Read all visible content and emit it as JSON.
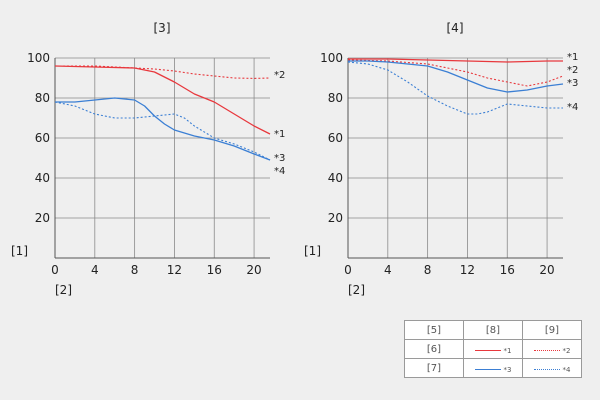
{
  "chart_data": [
    {
      "type": "line",
      "title": "[3]",
      "ylabel": "[1]",
      "xlabel": "[2]",
      "xlim": [
        0,
        21.6
      ],
      "ylim": [
        0,
        100
      ],
      "xticks": [
        0,
        4,
        8,
        12,
        16,
        20
      ],
      "yticks": [
        20,
        40,
        60,
        80,
        100
      ],
      "grid": true,
      "series": [
        {
          "name": "*1",
          "color": "#e8383d",
          "dash": "solid",
          "x": [
            0,
            4,
            8,
            10,
            12,
            14,
            16,
            18,
            20,
            21.6
          ],
          "y": [
            96,
            95.5,
            95,
            93,
            88,
            82,
            78,
            72,
            66,
            62
          ]
        },
        {
          "name": "*2",
          "color": "#e8383d",
          "dash": "dotted",
          "x": [
            0,
            4,
            8,
            10,
            12,
            14,
            16,
            18,
            20,
            21.6
          ],
          "y": [
            96,
            96,
            95,
            94.5,
            93.5,
            92,
            91,
            90,
            89.8,
            90
          ]
        },
        {
          "name": "*3",
          "color": "#3b7fd4",
          "dash": "solid",
          "x": [
            0,
            2,
            4,
            6,
            8,
            9,
            10,
            11,
            12,
            14,
            16,
            18,
            20,
            21.6
          ],
          "y": [
            78,
            78,
            79,
            80,
            79,
            76,
            71,
            67,
            64,
            61,
            59,
            56,
            52,
            49
          ]
        },
        {
          "name": "*4",
          "color": "#3b7fd4",
          "dash": "dotted",
          "x": [
            0,
            2,
            4,
            6,
            8,
            10,
            12,
            13,
            14,
            16,
            18,
            20,
            21.6
          ],
          "y": [
            78,
            76,
            72,
            70,
            70,
            71,
            72,
            70,
            66,
            60,
            57,
            53,
            49
          ]
        }
      ],
      "labels_right": [
        "*1",
        "*2",
        "*3",
        "*4"
      ]
    },
    {
      "type": "line",
      "title": "[4]",
      "ylabel": "[1]",
      "xlabel": "[2]",
      "xlim": [
        0,
        21.6
      ],
      "ylim": [
        0,
        100
      ],
      "xticks": [
        0,
        4,
        8,
        12,
        16,
        20
      ],
      "yticks": [
        20,
        40,
        60,
        80,
        100
      ],
      "grid": true,
      "series": [
        {
          "name": "*1",
          "color": "#e8383d",
          "dash": "solid",
          "x": [
            0,
            4,
            8,
            12,
            16,
            20,
            21.6
          ],
          "y": [
            99.5,
            99.5,
            99,
            98.5,
            98,
            98.5,
            98.5
          ]
        },
        {
          "name": "*2",
          "color": "#e8383d",
          "dash": "dotted",
          "x": [
            0,
            4,
            8,
            10,
            12,
            14,
            16,
            18,
            19,
            20,
            21.6
          ],
          "y": [
            99,
            98.5,
            97,
            95,
            93,
            90,
            88,
            86,
            87,
            88,
            91
          ]
        },
        {
          "name": "*3",
          "color": "#3b7fd4",
          "dash": "solid",
          "x": [
            0,
            2,
            4,
            6,
            8,
            10,
            12,
            14,
            16,
            18,
            20,
            21.6
          ],
          "y": [
            98.5,
            98.5,
            98,
            97,
            96,
            93,
            89,
            85,
            83,
            84,
            86,
            87
          ]
        },
        {
          "name": "*4",
          "color": "#3b7fd4",
          "dash": "dotted",
          "x": [
            0,
            2,
            4,
            6,
            8,
            10,
            12,
            13,
            14,
            16,
            18,
            20,
            21.6
          ],
          "y": [
            98,
            97,
            94,
            88,
            81,
            76,
            72,
            72,
            73,
            77,
            76,
            75,
            75
          ]
        }
      ],
      "labels_right": [
        "*1",
        "*2",
        "*3",
        "*4"
      ]
    }
  ],
  "legend": {
    "headers": [
      "[5]",
      "[8]",
      "[9]"
    ],
    "rows": [
      {
        "label": "[6]",
        "solid": "*1",
        "dotted": "*2",
        "color": "#e8383d"
      },
      {
        "label": "[7]",
        "solid": "*3",
        "dotted": "*4",
        "color": "#3b7fd4"
      }
    ]
  }
}
